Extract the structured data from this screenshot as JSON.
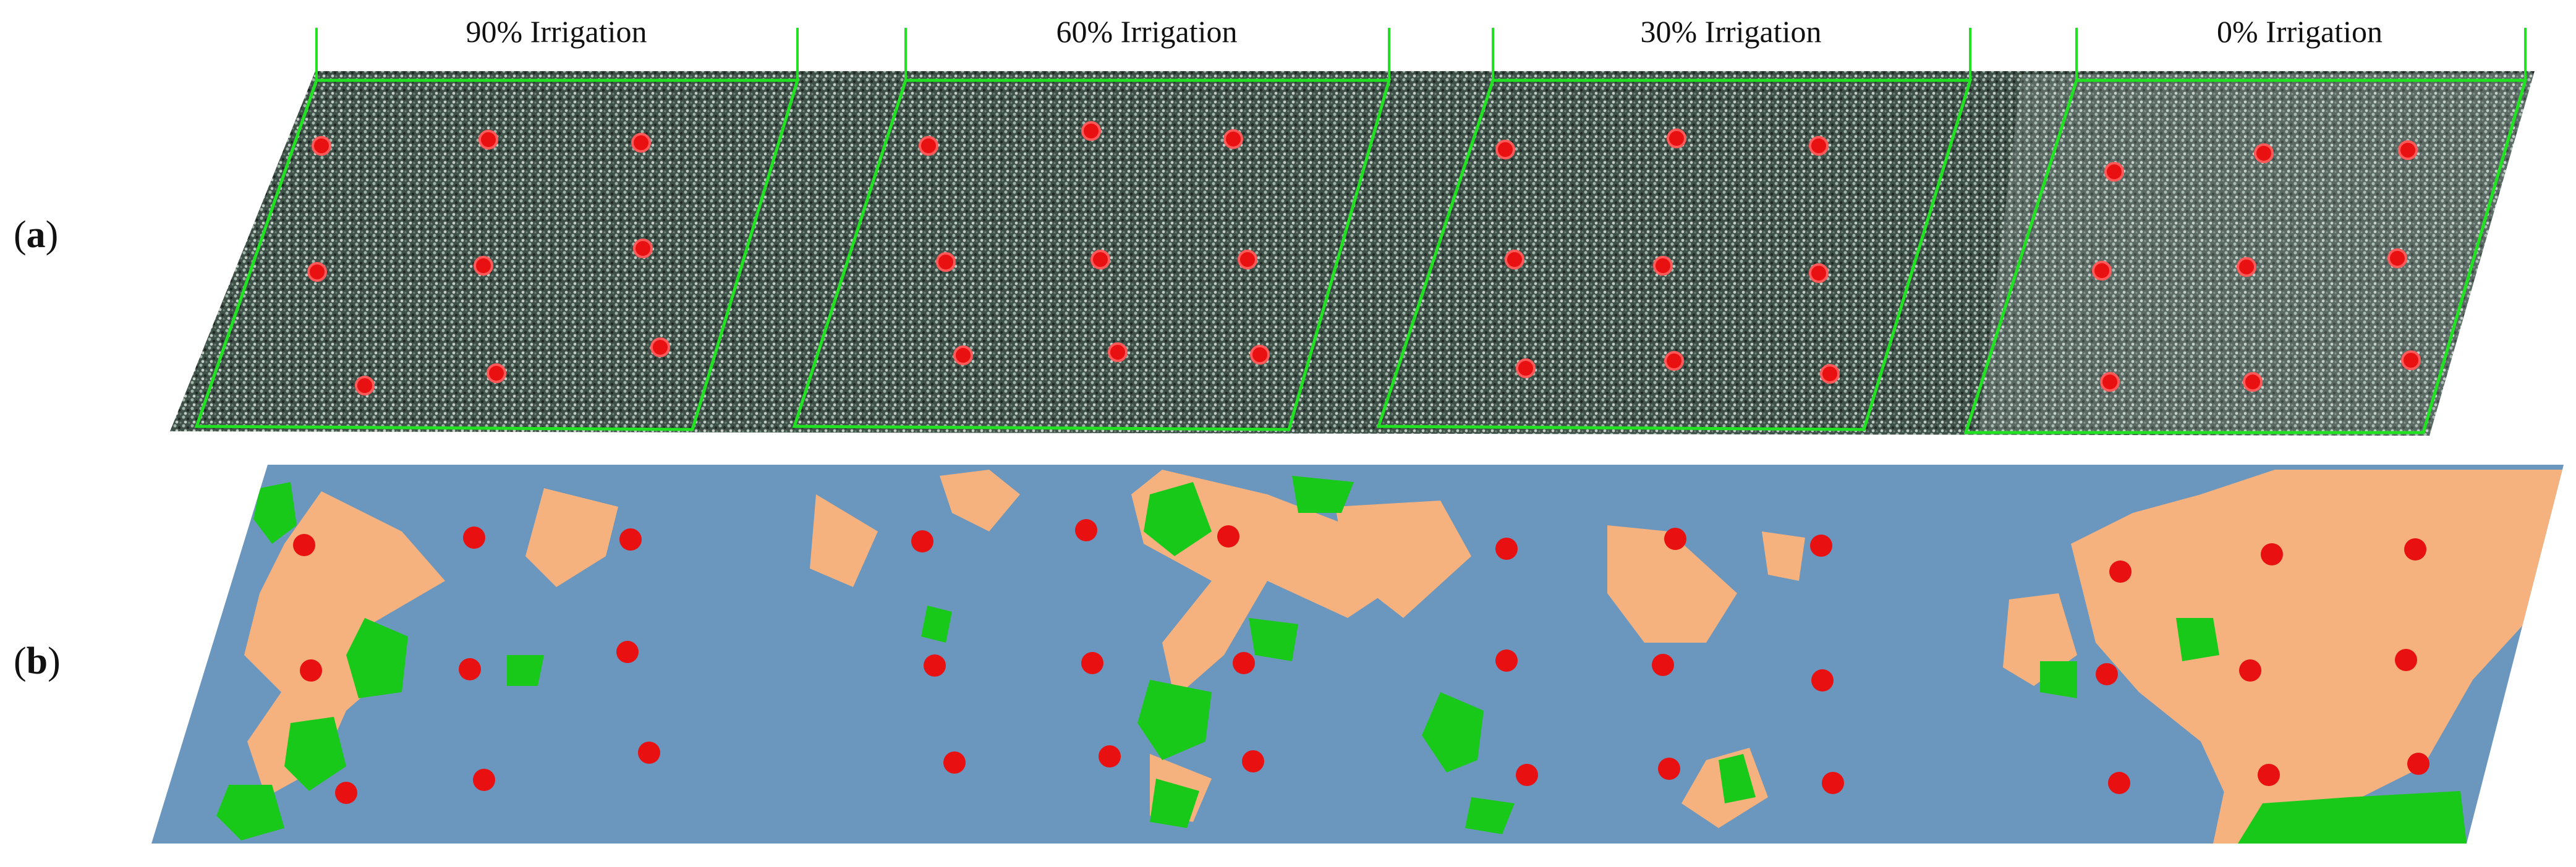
{
  "panels": {
    "a": {
      "open": "(",
      "letter": "a",
      "close": ")"
    },
    "b": {
      "open": "(",
      "letter": "b",
      "close": ")"
    }
  },
  "treatments": [
    "90% Irrigation",
    "60% Irrigation",
    "30% Irrigation",
    "0% Irrigation"
  ],
  "colors": {
    "marker": "#e81010",
    "plot_boundary": "#22e022",
    "background_class": "#6b96bd",
    "stress_class": "#f5b27e",
    "vegetation_class": "#19c919",
    "aerial_canopy": "#4a5a52"
  },
  "markers_per_plot": 9
}
